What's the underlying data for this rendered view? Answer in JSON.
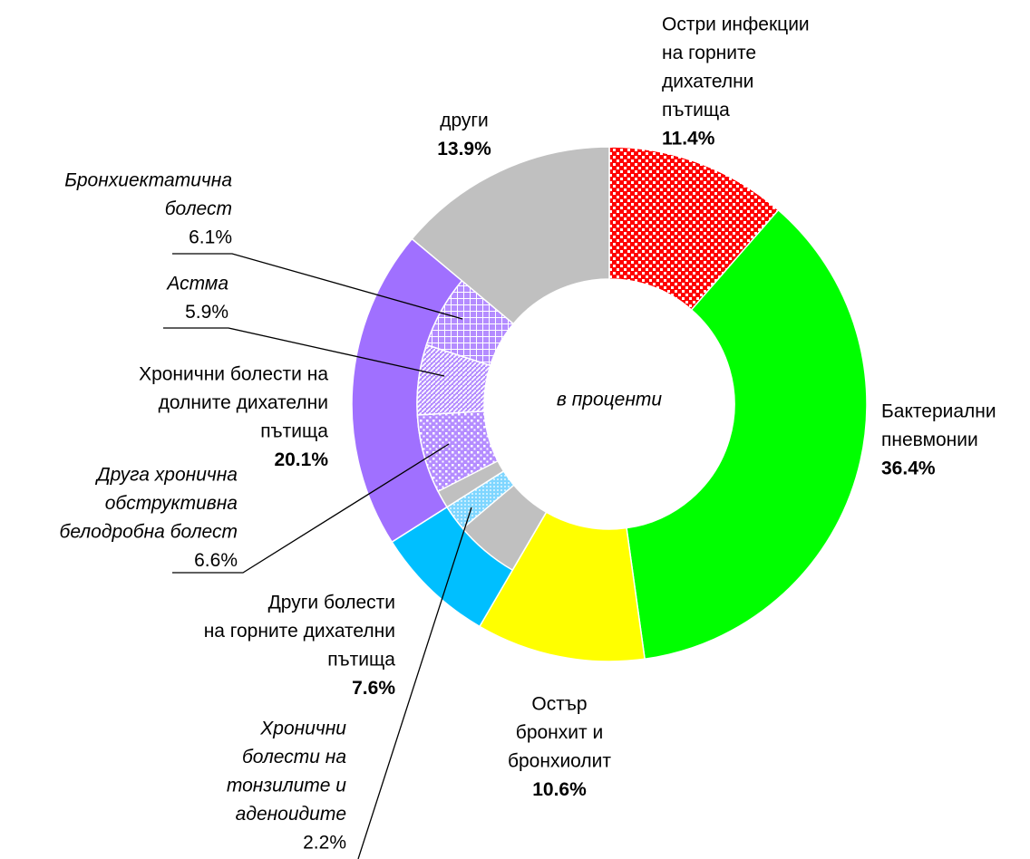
{
  "chart_data": {
    "type": "pie",
    "center_label": "в проценти",
    "segments": [
      {
        "label": [
          "Остри инфекции",
          "на горните",
          "дихателни",
          "пътища"
        ],
        "value": 11.4,
        "value_label": "11.4%",
        "color": "#ff0000"
      },
      {
        "label": [
          "Бактериални",
          "пневмонии"
        ],
        "value": 36.4,
        "value_label": "36.4%",
        "color": "#00ff00"
      },
      {
        "label": [
          "Остър",
          "бронхит и",
          "бронхиолит"
        ],
        "value": 10.6,
        "value_label": "10.6%",
        "color": "#ffff00"
      },
      {
        "label": [
          "Други болести",
          "на горните дихателни",
          "пътища"
        ],
        "value": 7.6,
        "value_label": "7.6%",
        "color": "#00bfff",
        "parts": [
          {
            "label": [
              "Хронични",
              "болести на",
              "тонзилите и",
              "аденоидите"
            ],
            "value": 2.2,
            "value_label": "2.2%",
            "color": "#7fd6ff"
          }
        ]
      },
      {
        "label": [
          "Хронични болести на",
          "долните дихателни",
          "пътища"
        ],
        "value": 20.1,
        "value_label": "20.1%",
        "color": "#a070ff",
        "parts": [
          {
            "label": [
              "Друга хронична",
              "обструктивна",
              "белодробна болест"
            ],
            "value": 6.6,
            "value_label": "6.6%",
            "color": "#b48cff"
          },
          {
            "label": [
              "Астма"
            ],
            "value": 5.9,
            "value_label": "5.9%",
            "color": "#b48cff"
          },
          {
            "label": [
              "Бронхиектатична",
              "болест"
            ],
            "value": 6.1,
            "value_label": "6.1%",
            "color": "#b48cff"
          }
        ]
      },
      {
        "label": [
          "други"
        ],
        "value": 13.9,
        "value_label": "13.9%",
        "color": "#c0c0c0"
      }
    ]
  }
}
